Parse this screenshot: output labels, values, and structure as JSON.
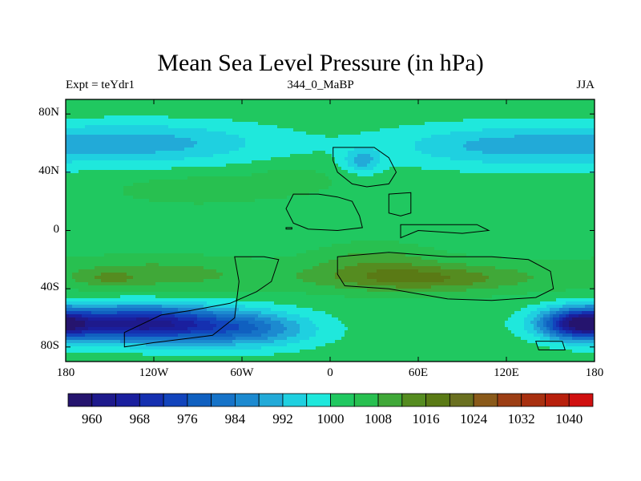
{
  "chart_data": {
    "type": "heatmap",
    "title": "Mean Sea Level Pressure (in hPa)",
    "subtitle_left": "Expt = teYdr1",
    "subtitle_center": "344_0_MaBP",
    "subtitle_right": "JJA",
    "x_range": [
      -180,
      180
    ],
    "y_range": [
      -90,
      90
    ],
    "x_ticks": [
      {
        "value": -180,
        "label": "180"
      },
      {
        "value": -120,
        "label": "120W"
      },
      {
        "value": -60,
        "label": "60W"
      },
      {
        "value": 0,
        "label": "0"
      },
      {
        "value": 60,
        "label": "60E"
      },
      {
        "value": 120,
        "label": "120E"
      },
      {
        "value": 180,
        "label": "180"
      }
    ],
    "y_ticks": [
      {
        "value": 80,
        "label": "80N"
      },
      {
        "value": 40,
        "label": "40N"
      },
      {
        "value": 0,
        "label": "0"
      },
      {
        "value": -40,
        "label": "40S"
      },
      {
        "value": -80,
        "label": "80S"
      }
    ],
    "levels": [
      956,
      960,
      964,
      968,
      972,
      976,
      980,
      984,
      988,
      992,
      996,
      1000,
      1004,
      1008,
      1012,
      1016,
      1020,
      1024,
      1028,
      1032,
      1036,
      1040,
      1044
    ],
    "colors": [
      "#25146e",
      "#1e1a8c",
      "#1a1f9e",
      "#1530b0",
      "#1244bc",
      "#1060c0",
      "#1673c8",
      "#1c8ad0",
      "#22aad8",
      "#1fd0e0",
      "#1fe8dc",
      "#20c860",
      "#28c050",
      "#40a838",
      "#558c20",
      "#5a7a15",
      "#6a7020",
      "#8a5a1a",
      "#9c3e14",
      "#a83010",
      "#b8200c",
      "#d01010"
    ],
    "colorbar_labels": [
      {
        "value": 960,
        "label": "960"
      },
      {
        "value": 968,
        "label": "968"
      },
      {
        "value": 976,
        "label": "976"
      },
      {
        "value": 984,
        "label": "984"
      },
      {
        "value": 992,
        "label": "992"
      },
      {
        "value": 1000,
        "label": "1000"
      },
      {
        "value": 1008,
        "label": "1008"
      },
      {
        "value": 1016,
        "label": "1016"
      },
      {
        "value": 1024,
        "label": "1024"
      },
      {
        "value": 1032,
        "label": "1032"
      },
      {
        "value": 1040,
        "label": "1040"
      }
    ],
    "background_pressure": 1002,
    "pressure_features": [
      {
        "lon": -120,
        "lat": 60,
        "rlon": 80,
        "rlat": 14,
        "amp": -11
      },
      {
        "lon": 120,
        "lat": 58,
        "rlon": 80,
        "rlat": 14,
        "amp": -11
      },
      {
        "lon": 22,
        "lat": 48,
        "rlon": 12,
        "rlat": 8,
        "amp": -11
      },
      {
        "lon": -90,
        "lat": 28,
        "rlon": 55,
        "rlat": 10,
        "amp": 5
      },
      {
        "lon": -25,
        "lat": 35,
        "rlon": 30,
        "rlat": 10,
        "amp": 4
      },
      {
        "lon": 30,
        "lat": -20,
        "rlon": 40,
        "rlat": 12,
        "amp": 6
      },
      {
        "lon": -120,
        "lat": -30,
        "rlon": 70,
        "rlat": 12,
        "amp": 8
      },
      {
        "lon": 60,
        "lat": -32,
        "rlon": 90,
        "rlat": 12,
        "amp": 8
      },
      {
        "lon": 60,
        "lat": -33,
        "rlon": 60,
        "rlat": 8,
        "amp": 7
      },
      {
        "lon": -150,
        "lat": -33,
        "rlon": 18,
        "rlat": 5,
        "amp": 5
      },
      {
        "lon": -130,
        "lat": -64,
        "rlon": 60,
        "rlat": 12,
        "amp": -40
      },
      {
        "lon": -55,
        "lat": -68,
        "rlon": 45,
        "rlat": 12,
        "amp": -16
      },
      {
        "lon": 170,
        "lat": -64,
        "rlon": 25,
        "rlat": 10,
        "amp": -35
      },
      {
        "lon": 160,
        "lat": 85,
        "rlon": 200,
        "rlat": 5,
        "amp": 2
      }
    ],
    "continent_outlines": [
      [
        [
          2,
          57
        ],
        [
          30,
          57
        ],
        [
          40,
          50
        ],
        [
          45,
          40
        ],
        [
          40,
          32
        ],
        [
          25,
          30
        ],
        [
          15,
          32
        ],
        [
          5,
          40
        ],
        [
          2,
          48
        ]
      ],
      [
        [
          -25,
          25
        ],
        [
          -8,
          25
        ],
        [
          5,
          23
        ],
        [
          15,
          20
        ],
        [
          20,
          10
        ],
        [
          22,
          2
        ],
        [
          5,
          0
        ],
        [
          -15,
          1
        ],
        [
          -25,
          5
        ],
        [
          -30,
          15
        ]
      ],
      [
        [
          -65,
          -18
        ],
        [
          -45,
          -18
        ],
        [
          -35,
          -20
        ],
        [
          -40,
          -35
        ],
        [
          -50,
          -42
        ],
        [
          -68,
          -50
        ],
        [
          -95,
          -55
        ],
        [
          -115,
          -58
        ],
        [
          -140,
          -70
        ],
        [
          -140,
          -80
        ],
        [
          -120,
          -77
        ],
        [
          -80,
          -72
        ],
        [
          -65,
          -60
        ],
        [
          -62,
          -35
        ]
      ],
      [
        [
          5,
          -18
        ],
        [
          40,
          -15
        ],
        [
          80,
          -18
        ],
        [
          110,
          -18
        ],
        [
          135,
          -20
        ],
        [
          150,
          -28
        ],
        [
          152,
          -40
        ],
        [
          140,
          -46
        ],
        [
          110,
          -48
        ],
        [
          80,
          -47
        ],
        [
          40,
          -40
        ],
        [
          10,
          -38
        ],
        [
          5,
          -30
        ]
      ],
      [
        [
          40,
          25
        ],
        [
          55,
          26
        ],
        [
          55,
          12
        ],
        [
          48,
          10
        ],
        [
          40,
          12
        ]
      ],
      [
        [
          48,
          4
        ],
        [
          100,
          4
        ],
        [
          108,
          0
        ],
        [
          90,
          -2
        ],
        [
          60,
          0
        ],
        [
          48,
          -5
        ]
      ],
      [
        [
          140,
          -76
        ],
        [
          158,
          -76
        ],
        [
          160,
          -82
        ],
        [
          142,
          -82
        ]
      ],
      [
        [
          -30,
          2
        ],
        [
          -26,
          2
        ],
        [
          -26,
          1
        ],
        [
          -30,
          1
        ]
      ]
    ]
  }
}
